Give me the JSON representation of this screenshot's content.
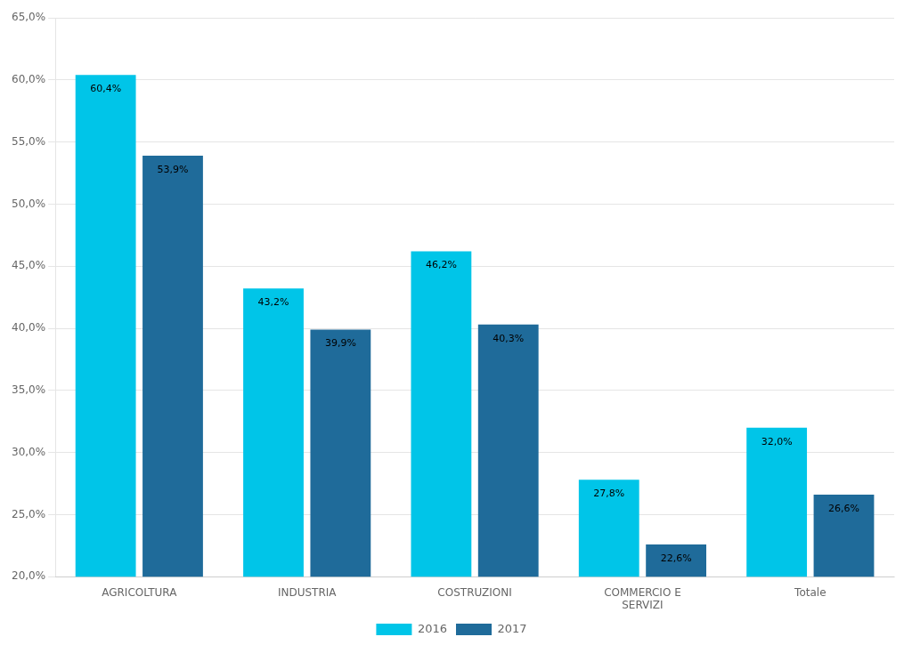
{
  "chart_data": {
    "type": "bar",
    "categories": [
      "AGRICOLTURA",
      "INDUSTRIA",
      "COSTRUZIONI",
      "COMMERCIO E\nSERVIZI",
      "Totale"
    ],
    "series": [
      {
        "name": "2016",
        "color": "#00C5E8",
        "values": [
          60.4,
          43.2,
          46.2,
          27.8,
          32.0
        ],
        "value_labels": [
          "60,4%",
          "43,2%",
          "46,2%",
          "27,8%",
          "32,0%"
        ]
      },
      {
        "name": "2017",
        "color": "#1F6B9A",
        "values": [
          53.9,
          39.9,
          40.3,
          22.6,
          26.6
        ],
        "value_labels": [
          "53,9%",
          "39,9%",
          "40,3%",
          "22,6%",
          "26,6%"
        ]
      }
    ],
    "ylim": [
      20.0,
      65.0
    ],
    "yticks": [
      {
        "value": 20.0,
        "label": "20,0%"
      },
      {
        "value": 25.0,
        "label": "25,0%"
      },
      {
        "value": 30.0,
        "label": "30,0%"
      },
      {
        "value": 35.0,
        "label": "35,0%"
      },
      {
        "value": 40.0,
        "label": "40,0%"
      },
      {
        "value": 45.0,
        "label": "45,0%"
      },
      {
        "value": 50.0,
        "label": "50,0%"
      },
      {
        "value": 55.0,
        "label": "55,0%"
      },
      {
        "value": 60.0,
        "label": "60,0%"
      },
      {
        "value": 65.0,
        "label": "65,0%"
      }
    ],
    "grid": true,
    "legend": "bottom",
    "data_labels": true
  }
}
